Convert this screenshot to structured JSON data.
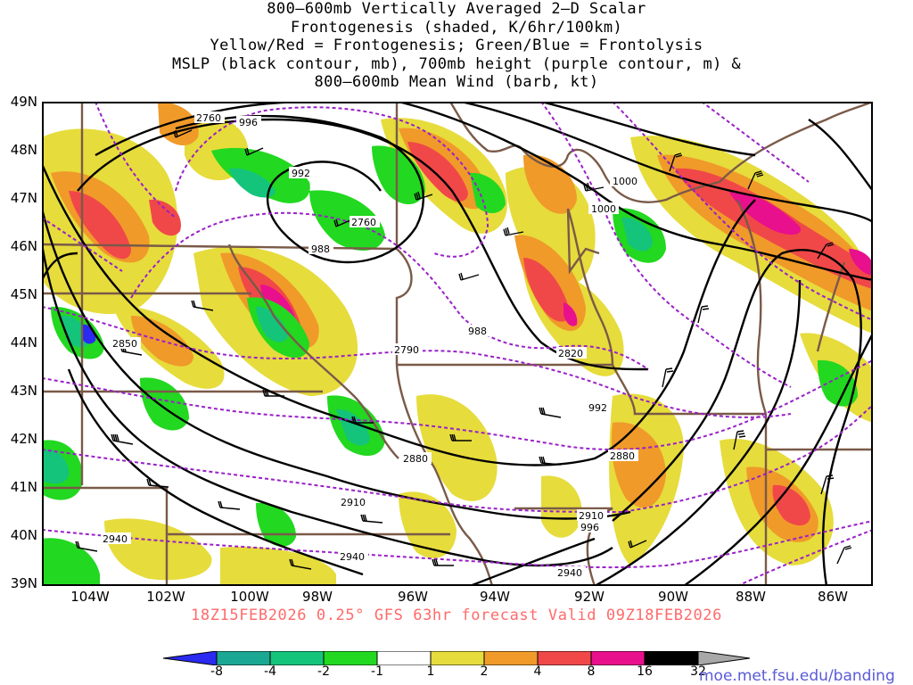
{
  "title": {
    "line1": "800–600mb Vertically Averaged 2–D Scalar",
    "line2": "Frontogenesis (shaded, K/6hr/100km)",
    "line3": "Yellow/Red = Frontogenesis;  Green/Blue = Frontolysis",
    "line4": "MSLP (black contour, mb), 700mb height (purple contour, m) &",
    "line5": "800–600mb Mean Wind (barb, kt)"
  },
  "lat_labels": [
    "49N",
    "48N",
    "47N",
    "46N",
    "45N",
    "44N",
    "43N",
    "42N",
    "41N",
    "40N",
    "39N"
  ],
  "lon_labels": [
    "104W",
    "102W",
    "100W",
    "98W",
    "96W",
    "94W",
    "92W",
    "90W",
    "88W",
    "86W"
  ],
  "pressure_labels": [
    "996",
    "992",
    "988",
    "988",
    "992",
    "996",
    "1000",
    "1000"
  ],
  "height_labels": [
    "2760",
    "2760",
    "2790",
    "2820",
    "2850",
    "2880",
    "2880",
    "2910",
    "2910",
    "2940",
    "2940",
    "2940"
  ],
  "footer": "18Z15FEB2026 0.25° GFS 63hr forecast Valid 09Z18FEB2026",
  "colorbar": {
    "labels": [
      "-8",
      "-4",
      "-2",
      "-1",
      "1",
      "2",
      "4",
      "8",
      "16",
      "32"
    ],
    "colors": [
      "#2a2af0",
      "#1aa892",
      "#14c47a",
      "#22d820",
      "#ffffff",
      "#e6dc3c",
      "#f09a2a",
      "#f04848",
      "#e8108c",
      "#000000",
      "#a8a8a8"
    ]
  },
  "url": "moe.met.fsu.edu/banding",
  "colors": {
    "state_borders": "#7a5a48",
    "pressure_contours": "#000000",
    "height_contours": "#9a20c8",
    "footer_text": "#ff6a6a"
  }
}
